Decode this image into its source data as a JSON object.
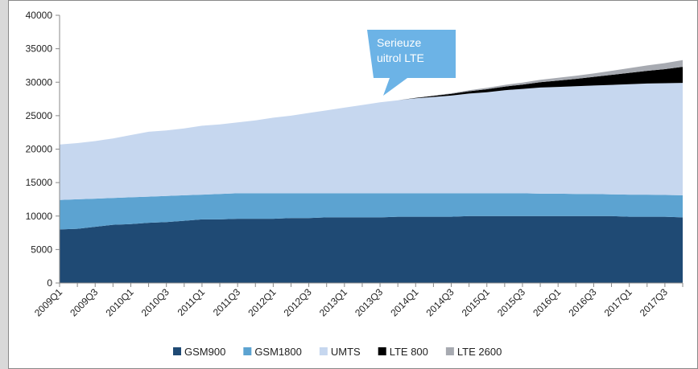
{
  "chart_data": {
    "type": "stacked_area",
    "categories": [
      "2009Q1",
      null,
      "2009Q3",
      null,
      "2010Q1",
      null,
      "2010Q3",
      null,
      "2011Q1",
      null,
      "2011Q3",
      null,
      "2012Q1",
      null,
      "2012Q3",
      null,
      "2013Q1",
      null,
      "2013Q3",
      null,
      "2014Q1",
      null,
      "2014Q3",
      null,
      "2015Q1",
      null,
      "2015Q3",
      null,
      "2016Q1",
      null,
      "2016Q3",
      null,
      "2017Q1",
      null,
      "2017Q3",
      null
    ],
    "series": [
      {
        "name": "GSM900",
        "color": "#1f4a74",
        "values": [
          8000,
          8100,
          8400,
          8700,
          8800,
          9000,
          9100,
          9300,
          9500,
          9500,
          9600,
          9600,
          9600,
          9700,
          9700,
          9800,
          9800,
          9800,
          9800,
          9900,
          9900,
          9900,
          9900,
          10000,
          10000,
          10000,
          10000,
          10000,
          10000,
          10000,
          10000,
          10000,
          9900,
          9900,
          9900,
          9800
        ]
      },
      {
        "name": "GSM1800",
        "color": "#5ca3d1",
        "values": [
          4400,
          4400,
          4200,
          4000,
          4000,
          3900,
          3900,
          3800,
          3700,
          3800,
          3800,
          3800,
          3800,
          3700,
          3700,
          3600,
          3600,
          3600,
          3600,
          3500,
          3500,
          3500,
          3500,
          3400,
          3400,
          3400,
          3400,
          3350,
          3350,
          3300,
          3300,
          3250,
          3300,
          3300,
          3250,
          3300
        ]
      },
      {
        "name": "UMTS",
        "color": "#c6d7ef",
        "values": [
          8300,
          8400,
          8600,
          8900,
          9300,
          9700,
          9800,
          10000,
          10300,
          10400,
          10600,
          10900,
          11300,
          11600,
          12000,
          12400,
          12800,
          13200,
          13600,
          13900,
          14200,
          14400,
          14600,
          14900,
          15100,
          15400,
          15600,
          15850,
          15950,
          16100,
          16200,
          16350,
          16500,
          16600,
          16700,
          16800
        ]
      },
      {
        "name": "LTE 800",
        "color": "#000000",
        "values": [
          0,
          0,
          0,
          0,
          0,
          0,
          0,
          0,
          0,
          0,
          0,
          0,
          0,
          0,
          0,
          0,
          0,
          0,
          0,
          0,
          50,
          150,
          250,
          350,
          450,
          550,
          650,
          800,
          950,
          1100,
          1300,
          1500,
          1700,
          1900,
          2100,
          2400
        ]
      },
      {
        "name": "LTE 2600",
        "color": "#a7aab1",
        "values": [
          0,
          0,
          0,
          0,
          0,
          0,
          0,
          0,
          0,
          0,
          0,
          0,
          0,
          0,
          0,
          0,
          0,
          0,
          0,
          0,
          0,
          50,
          100,
          150,
          200,
          250,
          300,
          350,
          400,
          450,
          500,
          600,
          700,
          800,
          900,
          1000
        ]
      }
    ],
    "annotation": [
      "Serieuze",
      "uitrol LTE"
    ],
    "ylim": [
      0,
      40000
    ],
    "yticks": [
      0,
      5000,
      10000,
      15000,
      20000,
      25000,
      30000,
      35000,
      40000
    ]
  }
}
